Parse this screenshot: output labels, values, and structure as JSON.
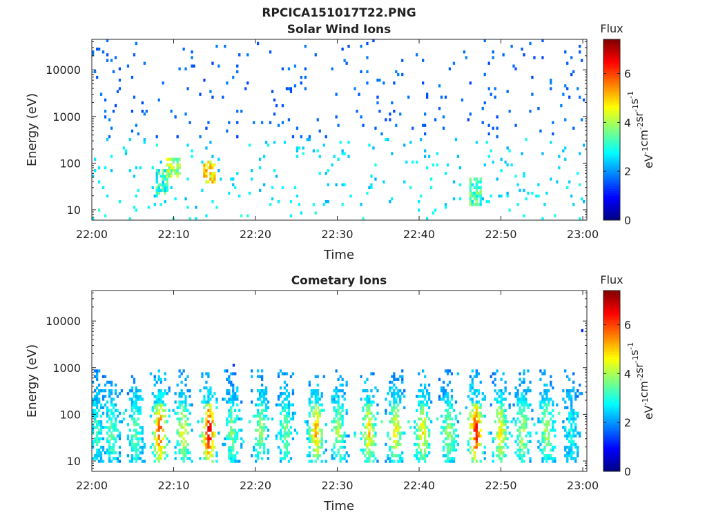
{
  "page": {
    "title": "RPCICA151017T22.PNG"
  },
  "chart_data": [
    {
      "type": "heatmap",
      "title": "Solar Wind Ions",
      "xlabel": "Time",
      "ylabel": "Energy (eV)",
      "x_ticks": [
        "22:00",
        "22:10",
        "22:20",
        "22:30",
        "22:40",
        "22:50",
        "23:00"
      ],
      "x_range_minutes": [
        0,
        60.5
      ],
      "y_scale": "log",
      "y_ticks": [
        {
          "v": 10,
          "label": "10"
        },
        {
          "v": 100,
          "label": "100"
        },
        {
          "v": 1000,
          "label": "1000"
        },
        {
          "v": 10000,
          "label": "10000"
        }
      ],
      "ylim": [
        6,
        45000
      ],
      "colorbar": {
        "title": "Flux",
        "unit_base": [
          "eV",
          "cm",
          "sr",
          "s"
        ],
        "unit_exp": [
          "-1",
          "-2",
          "-1",
          "-1"
        ],
        "ticks": [
          "0",
          "2",
          "4",
          "6"
        ],
        "range": [
          0,
          7.4
        ],
        "colormap": "jet"
      },
      "description_of_content": "sparse scattered pixels, mostly blue (flux ~1.5) at 300-20000 eV, cyan/green patches 10-200 eV; yellow-orange hotspot at 22:14 near 50-70 eV",
      "hotspots": [
        {
          "t_min": 14.3,
          "e_lo": 40,
          "e_hi": 90,
          "peak": 5.5
        },
        {
          "t_min": 8.5,
          "e_lo": 25,
          "e_hi": 60,
          "peak": 3.8
        },
        {
          "t_min": 9.8,
          "e_lo": 60,
          "e_hi": 100,
          "peak": 4.6
        },
        {
          "t_min": 46.8,
          "e_lo": 15,
          "e_hi": 40,
          "peak": 4.0
        }
      ]
    },
    {
      "type": "heatmap",
      "title": "Cometary Ions",
      "xlabel": "Time",
      "ylabel": "Energy (eV)",
      "x_ticks": [
        "22:00",
        "22:10",
        "22:20",
        "22:30",
        "22:40",
        "22:50",
        "23:00"
      ],
      "x_range_minutes": [
        0,
        60.5
      ],
      "y_scale": "log",
      "y_ticks": [
        {
          "v": 10,
          "label": "10"
        },
        {
          "v": 100,
          "label": "100"
        },
        {
          "v": 1000,
          "label": "1000"
        },
        {
          "v": 10000,
          "label": "10000"
        }
      ],
      "ylim": [
        6,
        45000
      ],
      "colorbar": {
        "title": "Flux",
        "unit_base": [
          "eV",
          "cm",
          "sr",
          "s"
        ],
        "unit_exp": [
          "-1",
          "-2",
          "-1",
          "-1"
        ],
        "ticks": [
          "0",
          "2",
          "4",
          "6"
        ],
        "range": [
          0,
          7.4
        ],
        "colormap": "jet"
      },
      "description_of_content": "periodic plume-like bursts roughly every 3 min between 10 and 500 eV; strongest (red) at 22:14 ~50 eV, 22:08 ~30 eV and 22:47 ~20 eV",
      "bursts": [
        {
          "t_min": 0.5,
          "peak": 3.2
        },
        {
          "t_min": 2.3,
          "peak": 3.4
        },
        {
          "t_min": 5.2,
          "peak": 3.6
        },
        {
          "t_min": 8.2,
          "peak": 6.2
        },
        {
          "t_min": 11.0,
          "peak": 4.6
        },
        {
          "t_min": 14.2,
          "peak": 7.0
        },
        {
          "t_min": 17.0,
          "peak": 3.8
        },
        {
          "t_min": 20.5,
          "peak": 4.0
        },
        {
          "t_min": 23.5,
          "peak": 3.7
        },
        {
          "t_min": 27.3,
          "peak": 5.4
        },
        {
          "t_min": 30.0,
          "peak": 4.0
        },
        {
          "t_min": 33.7,
          "peak": 5.0
        },
        {
          "t_min": 37.0,
          "peak": 4.8
        },
        {
          "t_min": 40.3,
          "peak": 4.9
        },
        {
          "t_min": 43.5,
          "peak": 4.0
        },
        {
          "t_min": 46.8,
          "peak": 6.6
        },
        {
          "t_min": 49.8,
          "peak": 4.8
        },
        {
          "t_min": 52.5,
          "peak": 4.2
        },
        {
          "t_min": 55.5,
          "peak": 4.1
        },
        {
          "t_min": 58.5,
          "peak": 2.8
        }
      ],
      "outliers": [
        {
          "t_min": 17.2,
          "e": 1050,
          "flux": 1.3
        },
        {
          "t_min": 59.8,
          "e": 5800,
          "flux": 1.2
        }
      ]
    }
  ]
}
